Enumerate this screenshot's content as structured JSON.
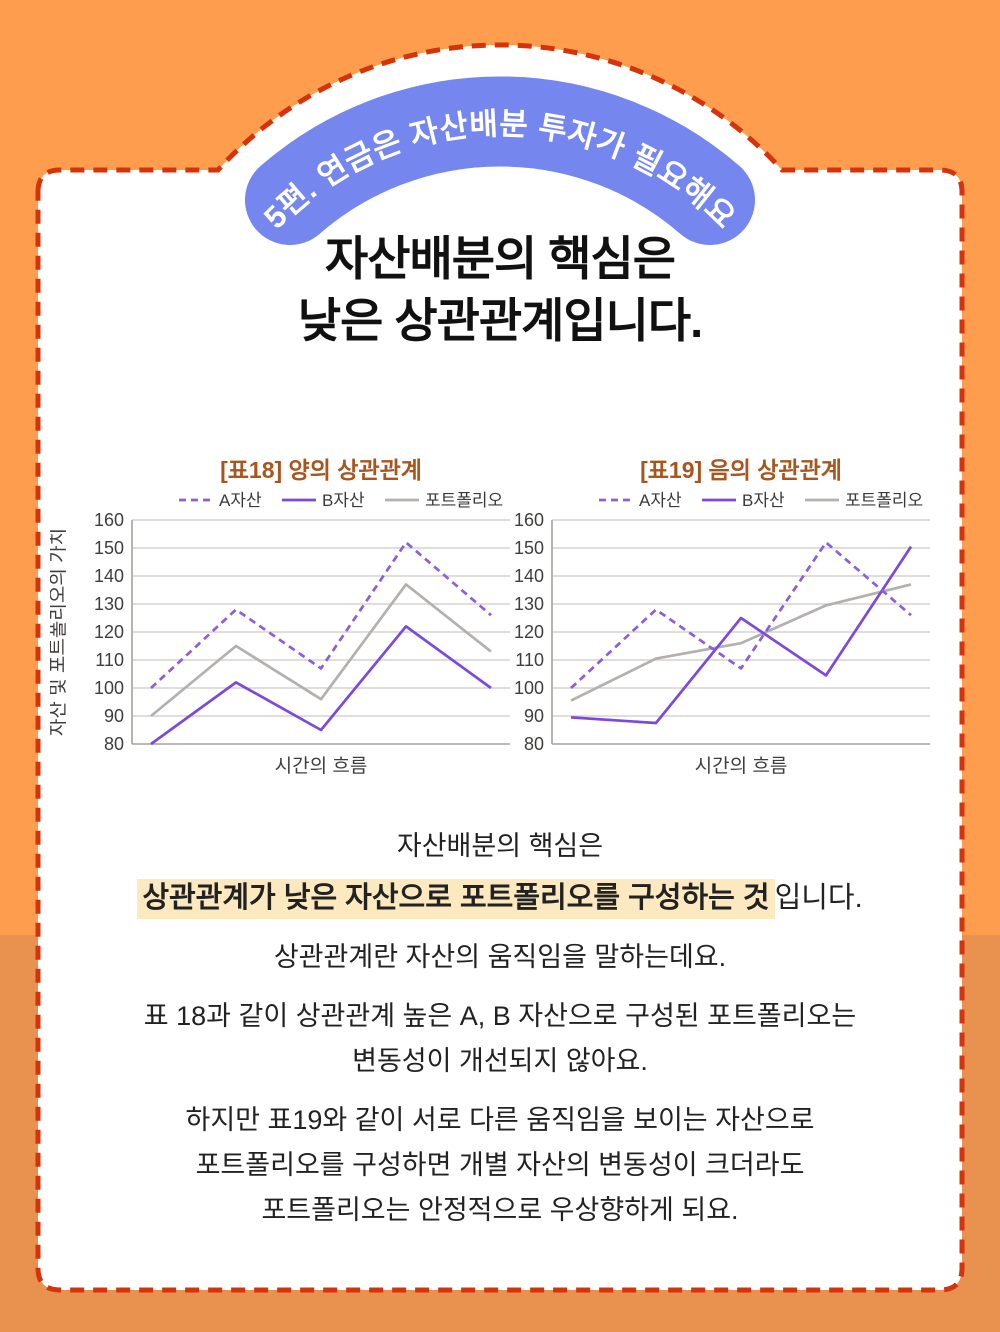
{
  "page": {
    "colors": {
      "bg-top": "#FD9D4D",
      "bg-bottom": "#E9914F",
      "border": "#D5330B",
      "banner": "#7586EF",
      "title-text": "#111111",
      "body-text": "#222222",
      "highlight": "#FCE9C0"
    }
  },
  "banner": {
    "text": "5편. 연금은 자산배분 투자가 필요해요"
  },
  "title": {
    "line1": "자산배분의 핵심은",
    "line2": "낮은 상관관계입니다."
  },
  "chart_data": [
    {
      "type": "line",
      "title": "[표18] 양의 상관관계",
      "xlabel": "시간의 흐름",
      "ylabel": "자산 및 포트폴리오의 가치",
      "ylim": [
        80,
        160
      ],
      "ytick_step": 10,
      "grid": true,
      "legend_position": "top-right",
      "x": [
        1,
        2,
        3,
        4,
        5
      ],
      "series": [
        {
          "name": "A자산",
          "style": "dashed",
          "color": "#8A5EDC",
          "values": [
            100,
            128,
            107,
            152,
            126
          ]
        },
        {
          "name": "B자산",
          "style": "solid",
          "color": "#7C49E0",
          "values": [
            80,
            102,
            85,
            122,
            100
          ]
        },
        {
          "name": "포트폴리오",
          "style": "solid",
          "color": "#B3B0AE",
          "values": [
            90,
            115,
            96,
            137,
            113
          ]
        }
      ]
    },
    {
      "type": "line",
      "title": "[표19] 음의 상관관계",
      "xlabel": "시간의 흐름",
      "ylabel": "",
      "ylim": [
        80,
        160
      ],
      "ytick_step": 10,
      "grid": true,
      "legend_position": "top-right",
      "x": [
        1,
        2,
        3,
        4,
        5
      ],
      "series": [
        {
          "name": "A자산",
          "style": "dashed",
          "color": "#8A5EDC",
          "values": [
            100,
            128,
            107,
            152,
            126
          ]
        },
        {
          "name": "B자산",
          "style": "solid",
          "color": "#7C49E0",
          "values": [
            89.5,
            87.5,
            125,
            104.5,
            150.5
          ]
        },
        {
          "name": "포트폴리오",
          "style": "solid",
          "color": "#B3B0AE",
          "values": [
            95.5,
            110.5,
            116,
            129.5,
            137
          ]
        }
      ]
    }
  ],
  "body": {
    "p1_line1": "자산배분의 핵심은",
    "p1_highlight": "상관관계가 낮은 자산으로 포트폴리오를 구성하는 것",
    "p1_rest": "입니다.",
    "p2": "상관관계란 자산의 움직임을 말하는데요.",
    "p3_line1": "표 18과 같이 상관관계 높은 A, B 자산으로 구성된 포트폴리오는",
    "p3_line2": "변동성이 개선되지 않아요.",
    "p4_line1": "하지만 표19와 같이 서로 다른 움직임을 보이는 자산으로",
    "p4_line2": "포트폴리오를 구성하면 개별 자산의 변동성이 크더라도",
    "p4_line3": "포트폴리오는 안정적으로 우상향하게 되요."
  }
}
